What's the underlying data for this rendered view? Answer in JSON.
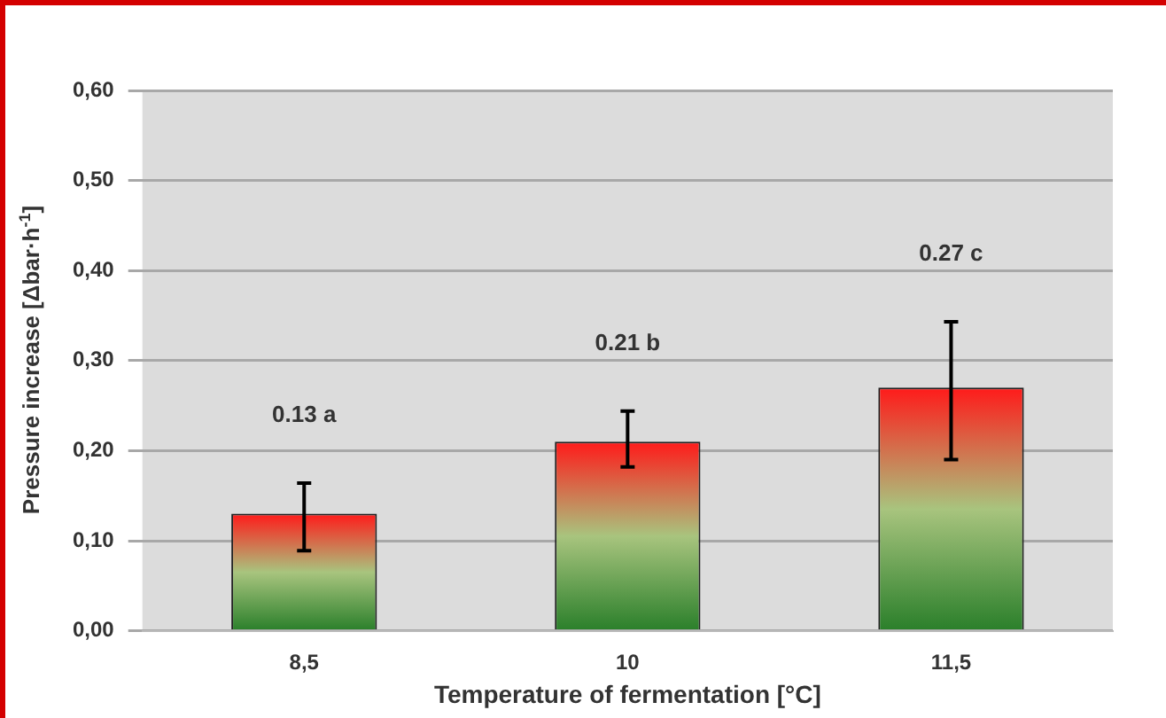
{
  "chart_data": {
    "type": "bar",
    "xlabel": "Temperature of fermentation [°C]",
    "ylabel": "Pressure increase [Δbar·h$^{-1}$]",
    "categories": [
      "8,5",
      "10",
      "11,5"
    ],
    "values": [
      0.13,
      0.21,
      0.27
    ],
    "errors": [
      [
        0.089,
        0.164
      ],
      [
        0.182,
        0.244
      ],
      [
        0.19,
        0.343
      ]
    ],
    "color": "#2a7f2a",
    "ylim": [
      0,
      0.6
    ],
    "yticks": [
      {
        "value": 0,
        "label": "0,00"
      },
      {
        "value": 0.1,
        "label": "0,10"
      },
      {
        "value": 0.2,
        "label": "0,20"
      },
      {
        "value": 0.3,
        "label": "0,30"
      },
      {
        "value": 0.4,
        "label": "0,40"
      },
      {
        "value": 0.5,
        "label": "0,50"
      },
      {
        "value": 0.6,
        "label": "0,60"
      }
    ],
    "grid": "y",
    "legend": false,
    "annotations": [
      "0.13 a",
      "0.21 b",
      "0.27 c"
    ]
  }
}
